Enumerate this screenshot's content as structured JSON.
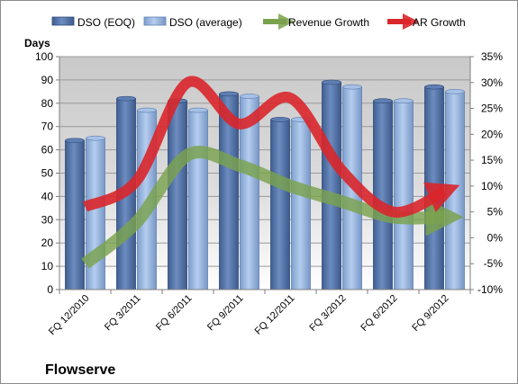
{
  "chart_data": {
    "type": "bar",
    "title": "Flowserve",
    "ylabel": "Days",
    "ylim": [
      0,
      100
    ],
    "y2lim": [
      -10,
      35
    ],
    "y_ticks": [
      "0",
      "10",
      "20",
      "30",
      "40",
      "50",
      "60",
      "70",
      "80",
      "90",
      "100"
    ],
    "y2_ticks": [
      "-10%",
      "-5%",
      "0%",
      "5%",
      "10%",
      "15%",
      "20%",
      "25%",
      "30%",
      "35%"
    ],
    "categories": [
      "FQ 12/2010",
      "FQ 3/2011",
      "FQ 6/2011",
      "FQ 9/2011",
      "FQ 12/2011",
      "FQ 3/2012",
      "FQ 6/2012",
      "FQ 9/2012"
    ],
    "series": [
      {
        "name": "DSO (EOQ)",
        "type": "bar",
        "axis": "left",
        "color": "#4f6fa3",
        "values": [
          64,
          82,
          81,
          84,
          73,
          89,
          81,
          87
        ]
      },
      {
        "name": "DSO (average)",
        "type": "bar",
        "axis": "left",
        "color": "#8fb0db",
        "values": [
          65,
          77,
          77,
          83,
          73,
          87,
          81,
          85
        ]
      },
      {
        "name": "Revenue Growth",
        "type": "line",
        "axis": "right",
        "color": "#7aa24e",
        "values": [
          -5,
          3,
          16,
          14,
          10,
          7,
          4,
          4
        ]
      },
      {
        "name": "AR Growth",
        "type": "line",
        "axis": "right",
        "color": "#d9262b",
        "values": [
          6,
          11,
          30,
          22,
          27,
          13,
          5,
          9
        ]
      }
    ],
    "legend_position": "top",
    "grid": true
  }
}
